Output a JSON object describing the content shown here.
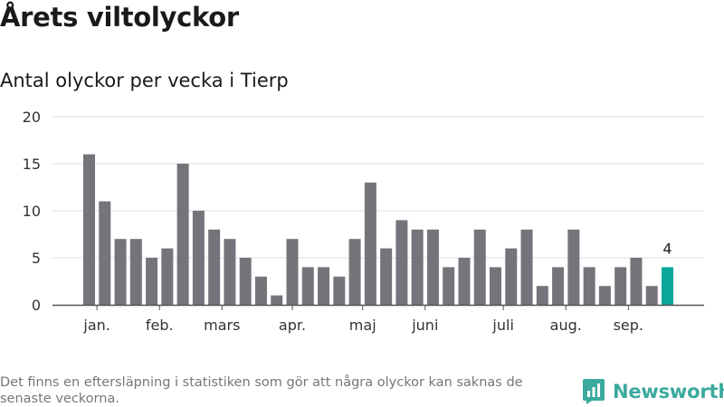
{
  "title": "Årets viltolyckor",
  "subtitle": "Antal olyckor per vecka i Tierp",
  "footnote": "Det finns en eftersläpning i statistiken som gör att några olyckor kan saknas de senaste veckorna.",
  "brand": {
    "name": "Newsworthy",
    "color": "#3ba99e"
  },
  "chart_data": {
    "type": "bar",
    "title": "",
    "xlabel": "",
    "ylabel": "",
    "ylim": [
      0,
      20
    ],
    "yticks": [
      0,
      5,
      10,
      15,
      20
    ],
    "grid": true,
    "values": [
      16,
      11,
      7,
      7,
      5,
      6,
      15,
      10,
      8,
      7,
      5,
      3,
      1,
      7,
      4,
      4,
      3,
      7,
      13,
      6,
      9,
      8,
      8,
      4,
      5,
      8,
      4,
      6,
      8,
      2,
      4,
      8,
      4,
      2,
      4,
      5,
      2,
      4
    ],
    "month_labels": [
      {
        "label": "jan.",
        "index": 0.5
      },
      {
        "label": "feb.",
        "index": 4.5
      },
      {
        "label": "mars",
        "index": 8.5
      },
      {
        "label": "apr.",
        "index": 13.0
      },
      {
        "label": "maj",
        "index": 17.5
      },
      {
        "label": "juni",
        "index": 21.5
      },
      {
        "label": "juli",
        "index": 26.5
      },
      {
        "label": "aug.",
        "index": 30.5
      },
      {
        "label": "sep.",
        "index": 34.5
      }
    ],
    "highlight": {
      "index": 37,
      "label": "4"
    },
    "colors": {
      "bar": "#75747a",
      "highlight": "#0aa699",
      "grid": "#dcdcdc",
      "axis": "#555555"
    }
  }
}
